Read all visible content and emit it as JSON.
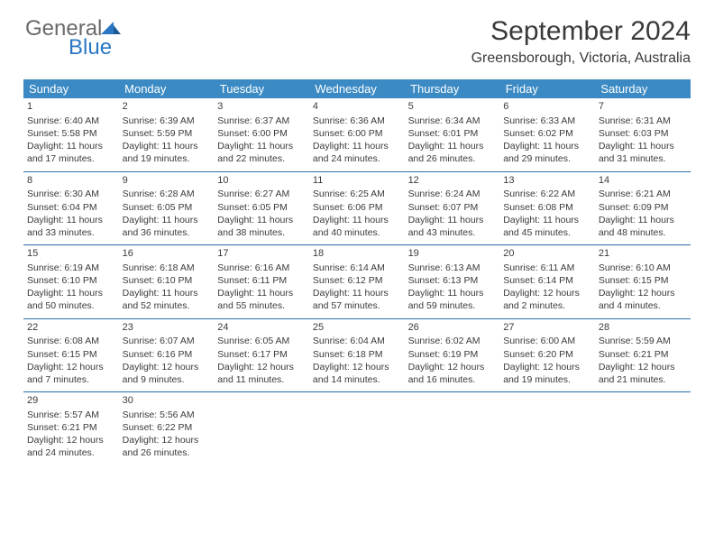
{
  "logo": {
    "word1": "General",
    "word2": "Blue"
  },
  "header": {
    "title": "September 2024",
    "location": "Greensborough, Victoria, Australia"
  },
  "styling": {
    "page_bg": "#ffffff",
    "header_bar_bg": "#3b8ac4",
    "header_bar_text": "#ffffff",
    "row_divider": "#2a6ea8",
    "body_text": "#3a3a3a",
    "title_fontsize": 30,
    "location_fontsize": 16,
    "dayhead_fontsize": 13,
    "cell_fontsize": 10.5,
    "columns": 7,
    "rows": 5
  },
  "dayHeaders": [
    "Sunday",
    "Monday",
    "Tuesday",
    "Wednesday",
    "Thursday",
    "Friday",
    "Saturday"
  ],
  "weeks": [
    [
      {
        "n": "1",
        "sr": "Sunrise: 6:40 AM",
        "ss": "Sunset: 5:58 PM",
        "d1": "Daylight: 11 hours",
        "d2": "and 17 minutes."
      },
      {
        "n": "2",
        "sr": "Sunrise: 6:39 AM",
        "ss": "Sunset: 5:59 PM",
        "d1": "Daylight: 11 hours",
        "d2": "and 19 minutes."
      },
      {
        "n": "3",
        "sr": "Sunrise: 6:37 AM",
        "ss": "Sunset: 6:00 PM",
        "d1": "Daylight: 11 hours",
        "d2": "and 22 minutes."
      },
      {
        "n": "4",
        "sr": "Sunrise: 6:36 AM",
        "ss": "Sunset: 6:00 PM",
        "d1": "Daylight: 11 hours",
        "d2": "and 24 minutes."
      },
      {
        "n": "5",
        "sr": "Sunrise: 6:34 AM",
        "ss": "Sunset: 6:01 PM",
        "d1": "Daylight: 11 hours",
        "d2": "and 26 minutes."
      },
      {
        "n": "6",
        "sr": "Sunrise: 6:33 AM",
        "ss": "Sunset: 6:02 PM",
        "d1": "Daylight: 11 hours",
        "d2": "and 29 minutes."
      },
      {
        "n": "7",
        "sr": "Sunrise: 6:31 AM",
        "ss": "Sunset: 6:03 PM",
        "d1": "Daylight: 11 hours",
        "d2": "and 31 minutes."
      }
    ],
    [
      {
        "n": "8",
        "sr": "Sunrise: 6:30 AM",
        "ss": "Sunset: 6:04 PM",
        "d1": "Daylight: 11 hours",
        "d2": "and 33 minutes."
      },
      {
        "n": "9",
        "sr": "Sunrise: 6:28 AM",
        "ss": "Sunset: 6:05 PM",
        "d1": "Daylight: 11 hours",
        "d2": "and 36 minutes."
      },
      {
        "n": "10",
        "sr": "Sunrise: 6:27 AM",
        "ss": "Sunset: 6:05 PM",
        "d1": "Daylight: 11 hours",
        "d2": "and 38 minutes."
      },
      {
        "n": "11",
        "sr": "Sunrise: 6:25 AM",
        "ss": "Sunset: 6:06 PM",
        "d1": "Daylight: 11 hours",
        "d2": "and 40 minutes."
      },
      {
        "n": "12",
        "sr": "Sunrise: 6:24 AM",
        "ss": "Sunset: 6:07 PM",
        "d1": "Daylight: 11 hours",
        "d2": "and 43 minutes."
      },
      {
        "n": "13",
        "sr": "Sunrise: 6:22 AM",
        "ss": "Sunset: 6:08 PM",
        "d1": "Daylight: 11 hours",
        "d2": "and 45 minutes."
      },
      {
        "n": "14",
        "sr": "Sunrise: 6:21 AM",
        "ss": "Sunset: 6:09 PM",
        "d1": "Daylight: 11 hours",
        "d2": "and 48 minutes."
      }
    ],
    [
      {
        "n": "15",
        "sr": "Sunrise: 6:19 AM",
        "ss": "Sunset: 6:10 PM",
        "d1": "Daylight: 11 hours",
        "d2": "and 50 minutes."
      },
      {
        "n": "16",
        "sr": "Sunrise: 6:18 AM",
        "ss": "Sunset: 6:10 PM",
        "d1": "Daylight: 11 hours",
        "d2": "and 52 minutes."
      },
      {
        "n": "17",
        "sr": "Sunrise: 6:16 AM",
        "ss": "Sunset: 6:11 PM",
        "d1": "Daylight: 11 hours",
        "d2": "and 55 minutes."
      },
      {
        "n": "18",
        "sr": "Sunrise: 6:14 AM",
        "ss": "Sunset: 6:12 PM",
        "d1": "Daylight: 11 hours",
        "d2": "and 57 minutes."
      },
      {
        "n": "19",
        "sr": "Sunrise: 6:13 AM",
        "ss": "Sunset: 6:13 PM",
        "d1": "Daylight: 11 hours",
        "d2": "and 59 minutes."
      },
      {
        "n": "20",
        "sr": "Sunrise: 6:11 AM",
        "ss": "Sunset: 6:14 PM",
        "d1": "Daylight: 12 hours",
        "d2": "and 2 minutes."
      },
      {
        "n": "21",
        "sr": "Sunrise: 6:10 AM",
        "ss": "Sunset: 6:15 PM",
        "d1": "Daylight: 12 hours",
        "d2": "and 4 minutes."
      }
    ],
    [
      {
        "n": "22",
        "sr": "Sunrise: 6:08 AM",
        "ss": "Sunset: 6:15 PM",
        "d1": "Daylight: 12 hours",
        "d2": "and 7 minutes."
      },
      {
        "n": "23",
        "sr": "Sunrise: 6:07 AM",
        "ss": "Sunset: 6:16 PM",
        "d1": "Daylight: 12 hours",
        "d2": "and 9 minutes."
      },
      {
        "n": "24",
        "sr": "Sunrise: 6:05 AM",
        "ss": "Sunset: 6:17 PM",
        "d1": "Daylight: 12 hours",
        "d2": "and 11 minutes."
      },
      {
        "n": "25",
        "sr": "Sunrise: 6:04 AM",
        "ss": "Sunset: 6:18 PM",
        "d1": "Daylight: 12 hours",
        "d2": "and 14 minutes."
      },
      {
        "n": "26",
        "sr": "Sunrise: 6:02 AM",
        "ss": "Sunset: 6:19 PM",
        "d1": "Daylight: 12 hours",
        "d2": "and 16 minutes."
      },
      {
        "n": "27",
        "sr": "Sunrise: 6:00 AM",
        "ss": "Sunset: 6:20 PM",
        "d1": "Daylight: 12 hours",
        "d2": "and 19 minutes."
      },
      {
        "n": "28",
        "sr": "Sunrise: 5:59 AM",
        "ss": "Sunset: 6:21 PM",
        "d1": "Daylight: 12 hours",
        "d2": "and 21 minutes."
      }
    ],
    [
      {
        "n": "29",
        "sr": "Sunrise: 5:57 AM",
        "ss": "Sunset: 6:21 PM",
        "d1": "Daylight: 12 hours",
        "d2": "and 24 minutes."
      },
      {
        "n": "30",
        "sr": "Sunrise: 5:56 AM",
        "ss": "Sunset: 6:22 PM",
        "d1": "Daylight: 12 hours",
        "d2": "and 26 minutes."
      },
      null,
      null,
      null,
      null,
      null
    ]
  ]
}
